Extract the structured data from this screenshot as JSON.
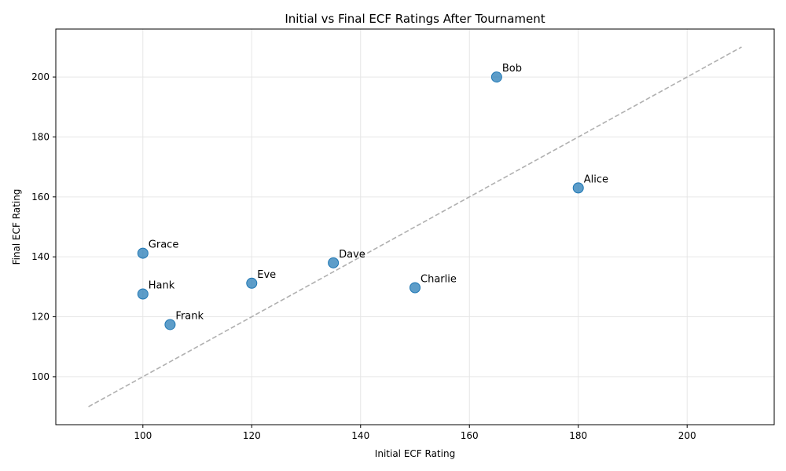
{
  "chart_data": {
    "type": "scatter",
    "title": "Initial vs Final ECF Ratings After Tournament",
    "xlabel": "Initial ECF Rating",
    "ylabel": "Final ECF Rating",
    "xlim": [
      84,
      216
    ],
    "ylim": [
      84,
      216
    ],
    "xticks": [
      100,
      120,
      140,
      160,
      180,
      200
    ],
    "yticks": [
      100,
      120,
      140,
      160,
      180,
      200
    ],
    "grid": true,
    "reference_line": {
      "from": [
        90,
        90
      ],
      "to": [
        210,
        210
      ],
      "style": "dashed"
    },
    "points": [
      {
        "name": "Alice",
        "x": 180,
        "y": 163
      },
      {
        "name": "Bob",
        "x": 165,
        "y": 200
      },
      {
        "name": "Charlie",
        "x": 150,
        "y": 129.7
      },
      {
        "name": "Dave",
        "x": 135,
        "y": 138
      },
      {
        "name": "Eve",
        "x": 120,
        "y": 131.2
      },
      {
        "name": "Frank",
        "x": 105,
        "y": 117.4
      },
      {
        "name": "Grace",
        "x": 100,
        "y": 141.2
      },
      {
        "name": "Hank",
        "x": 100,
        "y": 127.6
      }
    ],
    "colors": {
      "point": "#1f77b4",
      "reference": "#b0b0b0",
      "grid": "#e6e6e6",
      "axis": "#000000"
    }
  }
}
